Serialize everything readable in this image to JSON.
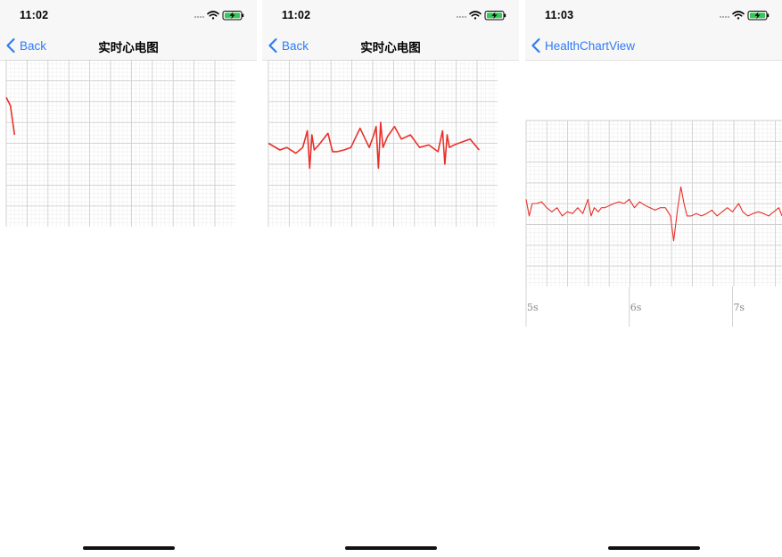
{
  "colors": {
    "accent": "#2f7cf6",
    "ecg_line": "#e8302a",
    "grid_major": "#cfcfcf",
    "grid_minor": "#ececec",
    "bar_background": "#f7f7f7"
  },
  "screens": [
    {
      "time": "11:02",
      "back_label": "Back",
      "title": "实时心电图",
      "icons": [
        "signal-dots-icon",
        "wifi-icon",
        "battery-charging-icon"
      ]
    },
    {
      "time": "11:02",
      "back_label": "Back",
      "title": "实时心电图",
      "icons": [
        "signal-dots-icon",
        "wifi-icon",
        "battery-charging-icon"
      ]
    },
    {
      "time": "11:03",
      "back_label": "HealthChartView",
      "title": "",
      "icons": [
        "signal-dots-icon",
        "wifi-icon",
        "battery-charging-icon"
      ]
    }
  ],
  "chart_data": [
    {
      "type": "line",
      "title": "",
      "grid": true,
      "series": [
        {
          "x": [
            0,
            0.02,
            0.04
          ],
          "y": [
            0.55,
            0.45,
            0.1
          ]
        }
      ],
      "xlim": [
        0,
        1.1
      ],
      "ylim": [
        -1,
        1
      ]
    },
    {
      "type": "line",
      "title": "",
      "grid": true,
      "series": [
        {
          "x": [
            0,
            0.05,
            0.08,
            0.12,
            0.15,
            0.17,
            0.18,
            0.19,
            0.2,
            0.22,
            0.26,
            0.28,
            0.3,
            0.33,
            0.36,
            0.4,
            0.44,
            0.46,
            0.47,
            0.48,
            0.49,
            0.5,
            0.52,
            0.55,
            0.58,
            0.62,
            0.66,
            0.7,
            0.74,
            0.76,
            0.77,
            0.78,
            0.79,
            0.81,
            0.85,
            0.88,
            0.92
          ],
          "y": [
            0.0,
            -0.08,
            -0.05,
            -0.12,
            -0.05,
            0.15,
            -0.3,
            0.1,
            -0.08,
            -0.02,
            0.12,
            -0.1,
            -0.1,
            -0.08,
            -0.05,
            0.18,
            -0.05,
            0.1,
            0.2,
            -0.3,
            0.25,
            -0.05,
            0.08,
            0.2,
            0.05,
            0.1,
            -0.05,
            -0.02,
            -0.1,
            0.15,
            -0.25,
            0.1,
            -0.05,
            -0.02,
            0.02,
            0.05,
            -0.08
          ]
        }
      ],
      "xlim": [
        0,
        1
      ],
      "ylim": [
        -1,
        1
      ]
    },
    {
      "type": "line",
      "title": "",
      "grid": true,
      "x_ticks": [
        "5s",
        "6s",
        "7s"
      ],
      "x_tick_values": [
        5,
        6,
        7
      ],
      "xlim": [
        5,
        7.48
      ],
      "ylim": [
        -1,
        1
      ],
      "series": [
        {
          "x": [
            5.0,
            5.03,
            5.06,
            5.1,
            5.15,
            5.2,
            5.25,
            5.3,
            5.35,
            5.4,
            5.45,
            5.5,
            5.55,
            5.6,
            5.63,
            5.66,
            5.7,
            5.73,
            5.76,
            5.8,
            5.85,
            5.9,
            5.95,
            6.0,
            6.05,
            6.1,
            6.15,
            6.2,
            6.25,
            6.3,
            6.35,
            6.4,
            6.43,
            6.45,
            6.47,
            6.5,
            6.53,
            6.56,
            6.6,
            6.65,
            6.7,
            6.75,
            6.8,
            6.85,
            6.9,
            6.95,
            7.0,
            7.03,
            7.06,
            7.1,
            7.15,
            7.2,
            7.25,
            7.3,
            7.35,
            7.4,
            7.45,
            7.48
          ],
          "y": [
            0.05,
            -0.15,
            0.0,
            0.0,
            0.02,
            -0.05,
            -0.1,
            -0.05,
            -0.15,
            -0.1,
            -0.12,
            -0.05,
            -0.12,
            0.05,
            -0.15,
            -0.05,
            -0.1,
            -0.05,
            -0.05,
            -0.03,
            0.0,
            0.02,
            0.0,
            0.05,
            -0.05,
            0.02,
            -0.02,
            -0.05,
            -0.08,
            -0.05,
            -0.05,
            -0.15,
            -0.45,
            -0.25,
            -0.05,
            0.2,
            0.0,
            -0.15,
            -0.15,
            -0.12,
            -0.15,
            -0.12,
            -0.08,
            -0.15,
            -0.1,
            -0.05,
            -0.1,
            -0.05,
            0.0,
            -0.1,
            -0.15,
            -0.12,
            -0.1,
            -0.12,
            -0.15,
            -0.1,
            -0.05,
            -0.15
          ]
        }
      ]
    }
  ]
}
